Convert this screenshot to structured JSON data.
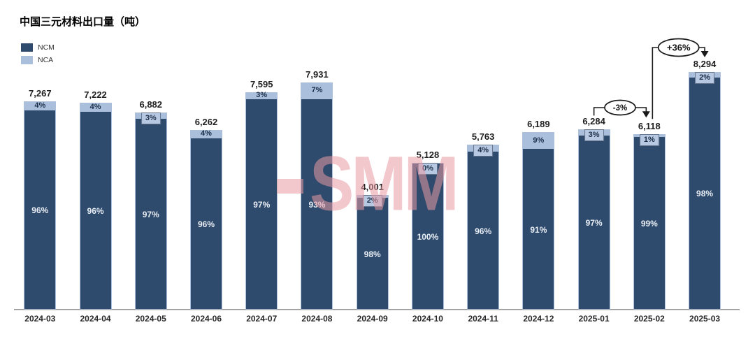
{
  "title": "中国三元材料出口量（吨）",
  "watermark": {
    "text": "SMM"
  },
  "colors": {
    "ncm": "#2e4a6c",
    "nca": "#a9bfdc",
    "nca_box_bg": "#b6c8e2",
    "nca_box_border": "#64748c",
    "axis": "#a3a3a3",
    "watermark_pink": "rgba(233,154,164,0.55)"
  },
  "legend": [
    {
      "label": "NCM",
      "color": "#2e4a6c"
    },
    {
      "label": "NCA",
      "color": "#a9bfdc"
    }
  ],
  "chart_data": {
    "type": "bar",
    "stacked": true,
    "title": "中国三元材料出口量（吨）",
    "categories": [
      "2024-03",
      "2024-04",
      "2024-05",
      "2024-06",
      "2024-07",
      "2024-08",
      "2024-09",
      "2024-10",
      "2024-11",
      "2024-12",
      "2025-01",
      "2025-02",
      "2025-03"
    ],
    "totals": [
      7267,
      7222,
      6882,
      6262,
      7595,
      7931,
      4001,
      5128,
      5763,
      6189,
      6284,
      6118,
      8294
    ],
    "total_labels": [
      "7,267",
      "7,222",
      "6,882",
      "6,262",
      "7,595",
      "7,931",
      "4,001",
      "5,128",
      "5,763",
      "6,189",
      "6,284",
      "6,118",
      "8,294"
    ],
    "series": [
      {
        "name": "NCM",
        "color": "#2e4a6c",
        "pct": [
          96,
          96,
          97,
          96,
          97,
          93,
          98,
          100,
          96,
          91,
          97,
          99,
          98
        ]
      },
      {
        "name": "NCA",
        "color": "#a9bfdc",
        "pct": [
          4,
          4,
          3,
          4,
          3,
          7,
          2,
          0,
          4,
          9,
          3,
          1,
          2
        ]
      }
    ],
    "nca_label_boxed": [
      false,
      false,
      true,
      false,
      false,
      false,
      true,
      true,
      true,
      false,
      true,
      true,
      true
    ],
    "annotations": [
      {
        "label": "-3%",
        "from": "2025-01",
        "to": "2025-02",
        "from_index": 10,
        "to_index": 11
      },
      {
        "label": "+36%",
        "from": "2025-02",
        "to": "2025-03",
        "from_index": 11,
        "to_index": 12
      }
    ],
    "ylim": [
      0,
      8294
    ],
    "xlabel": "",
    "ylabel": "吨",
    "grid": false,
    "legend_position": "top-left"
  }
}
